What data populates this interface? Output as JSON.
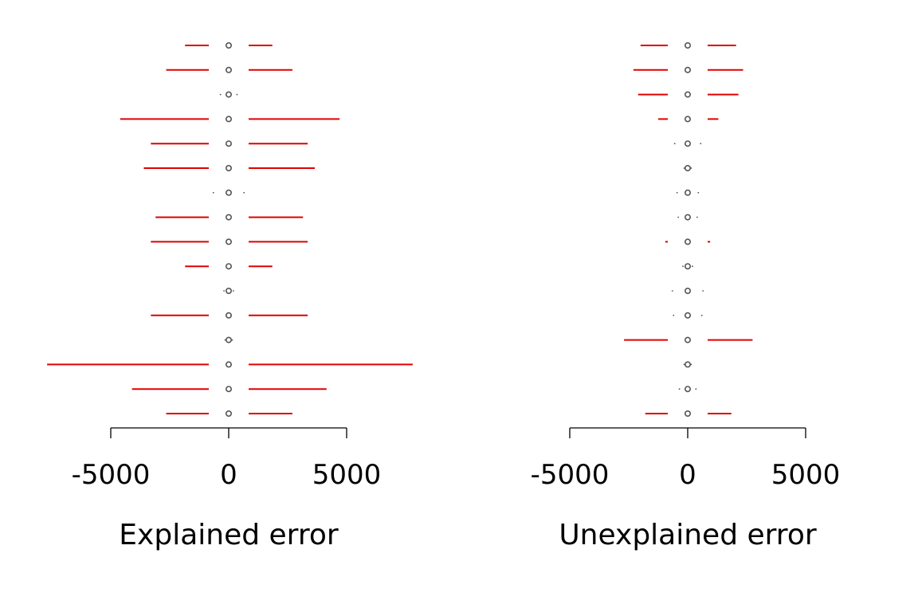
{
  "chart_data": [
    {
      "type": "errorbar",
      "title": "",
      "xlabel": "Explained error",
      "ylabel": "",
      "xlim": [
        -7600,
        7900
      ],
      "xticks": [
        -5000,
        0,
        5000
      ],
      "xtick_labels": [
        "-5000",
        "0",
        "5000"
      ],
      "grid": false,
      "legend": "none",
      "center_value": 0,
      "errorbar_color": "#e00000",
      "point_color": "#555555",
      "rows": [
        {
          "low": -1850,
          "high": 1850
        },
        {
          "low": -2650,
          "high": 2700
        },
        {
          "low": -350,
          "high": 350
        },
        {
          "low": -4600,
          "high": 4700
        },
        {
          "low": -3300,
          "high": 3350
        },
        {
          "low": -3600,
          "high": 3650
        },
        {
          "low": -650,
          "high": 650
        },
        {
          "low": -3100,
          "high": 3150
        },
        {
          "low": -3300,
          "high": 3350
        },
        {
          "low": -1850,
          "high": 1850
        },
        {
          "low": -200,
          "high": 200
        },
        {
          "low": -3300,
          "high": 3350
        },
        {
          "low": -150,
          "high": 150
        },
        {
          "low": -7700,
          "high": 7800
        },
        {
          "low": -4100,
          "high": 4150
        },
        {
          "low": -2650,
          "high": 2700
        }
      ]
    },
    {
      "type": "errorbar",
      "title": "",
      "xlabel": "Unexplained error",
      "ylabel": "",
      "xlim": [
        -5000,
        7000
      ],
      "xticks": [
        -5000,
        0,
        5000
      ],
      "xtick_labels": [
        "-5000",
        "0",
        "5000"
      ],
      "grid": false,
      "legend": "none",
      "center_value": 0,
      "errorbar_color": "#e00000",
      "point_color": "#555555",
      "rows": [
        {
          "low": -2000,
          "high": 2050
        },
        {
          "low": -2300,
          "high": 2350
        },
        {
          "low": -2100,
          "high": 2150
        },
        {
          "low": -1250,
          "high": 1300
        },
        {
          "low": -550,
          "high": 550
        },
        {
          "low": -150,
          "high": 150
        },
        {
          "low": -450,
          "high": 450
        },
        {
          "low": -400,
          "high": 400
        },
        {
          "low": -950,
          "high": 950
        },
        {
          "low": -200,
          "high": 200
        },
        {
          "low": -650,
          "high": 650
        },
        {
          "low": -600,
          "high": 600
        },
        {
          "low": -2700,
          "high": 2750
        },
        {
          "low": -150,
          "high": 150
        },
        {
          "low": -350,
          "high": 350
        },
        {
          "low": -1800,
          "high": 1850
        }
      ]
    }
  ]
}
